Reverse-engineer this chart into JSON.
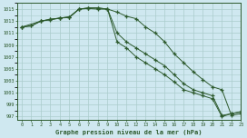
{
  "title": "Graphe pression niveau de la mer (hPa)",
  "bg_color": "#cfe8f0",
  "grid_color": "#aacccc",
  "line_color": "#2d5a2d",
  "xlim": [
    -0.5,
    23
  ],
  "ylim": [
    996.5,
    1016.0
  ],
  "yticks": [
    997,
    999,
    1001,
    1003,
    1005,
    1007,
    1009,
    1011,
    1013,
    1015
  ],
  "xticks": [
    0,
    1,
    2,
    3,
    4,
    5,
    6,
    7,
    8,
    9,
    10,
    11,
    12,
    13,
    14,
    15,
    16,
    17,
    18,
    19,
    20,
    21,
    22,
    23
  ],
  "line1_x": [
    0,
    1,
    2,
    3,
    4,
    5,
    6,
    7,
    8,
    9,
    10,
    11,
    12,
    13,
    14,
    15,
    16,
    17,
    18,
    19,
    20,
    21,
    22,
    23
  ],
  "line1": [
    1012.0,
    1012.2,
    1013.0,
    1013.2,
    1013.5,
    1013.6,
    1015.0,
    1015.1,
    1015.0,
    1015.0,
    1014.5,
    1013.8,
    1013.4,
    1012.0,
    1011.0,
    1009.5,
    1007.5,
    1006.0,
    1004.5,
    1003.2,
    1002.0,
    1001.5,
    997.2,
    997.5
  ],
  "line2_x": [
    0,
    1,
    2,
    3,
    4,
    5,
    6,
    7,
    8,
    9,
    10,
    11,
    12,
    13,
    14,
    15,
    16,
    17,
    18,
    19,
    20,
    21,
    22,
    23
  ],
  "line2": [
    1012.0,
    1012.2,
    1013.0,
    1013.3,
    1013.5,
    1013.7,
    1015.0,
    1015.2,
    1015.2,
    1015.0,
    1011.0,
    1009.5,
    1008.5,
    1007.5,
    1006.5,
    1005.5,
    1004.0,
    1002.5,
    1001.5,
    1001.0,
    1000.5,
    997.2,
    997.5,
    997.8
  ],
  "line3_x": [
    0,
    2,
    3,
    4,
    5,
    6,
    7,
    8,
    9,
    10,
    11,
    12,
    13,
    14,
    15,
    16,
    17,
    18,
    19,
    20,
    21,
    22,
    23
  ],
  "line3": [
    1012.0,
    1013.0,
    1013.3,
    1013.5,
    1013.7,
    1015.0,
    1015.2,
    1015.2,
    1015.0,
    1009.5,
    1008.5,
    1007.0,
    1006.0,
    1005.0,
    1004.0,
    1002.8,
    1001.5,
    1001.0,
    1000.5,
    1000.0,
    997.0,
    997.5,
    997.8
  ]
}
